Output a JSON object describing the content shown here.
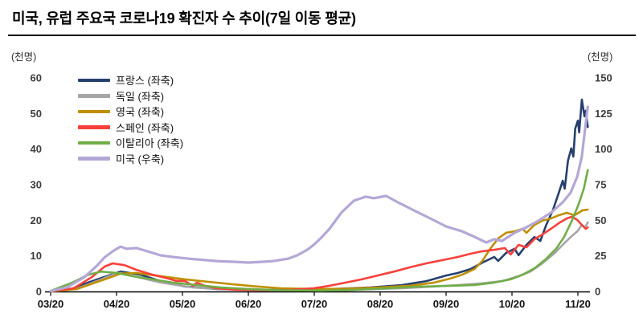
{
  "header": {
    "title": "미국, 유럽 주요국 코로나19 확진자 수 추이(7일 이동 평균)"
  },
  "chart_data": {
    "type": "line",
    "title": "미국, 유럽 주요국 코로나19 확진자 수 추이(7일 이동 평균)",
    "xlabel": "",
    "grid": false,
    "legend_position": "top-left",
    "left_axis": {
      "unit": "(천명)",
      "min": 0,
      "max": 60,
      "ticks": [
        0,
        10,
        20,
        30,
        40,
        50,
        60
      ]
    },
    "right_axis": {
      "unit": "(천명)",
      "min": 0,
      "max": 150,
      "ticks": [
        0,
        25,
        50,
        75,
        100,
        125,
        150
      ]
    },
    "x_axis": {
      "tick_labels": [
        "03/20",
        "04/20",
        "05/20",
        "06/20",
        "07/20",
        "08/20",
        "09/20",
        "10/20",
        "11/20"
      ],
      "note": "x unit = months since 03/20"
    },
    "series": [
      {
        "id": "france",
        "name": "프랑스 (좌축)",
        "axis": "left",
        "color": "#26406e",
        "points": [
          [
            0,
            0.1
          ],
          [
            0.3,
            0.6
          ],
          [
            0.57,
            2.5
          ],
          [
            0.82,
            4.1
          ],
          [
            1.06,
            5.6
          ],
          [
            1.37,
            4.7
          ],
          [
            1.67,
            2.9
          ],
          [
            2.04,
            1.4
          ],
          [
            2.52,
            0.7
          ],
          [
            3.0,
            0.5
          ],
          [
            3.5,
            0.45
          ],
          [
            4.0,
            0.5
          ],
          [
            4.4,
            0.8
          ],
          [
            4.84,
            1.1
          ],
          [
            5.33,
            1.8
          ],
          [
            5.7,
            2.9
          ],
          [
            6.0,
            4.5
          ],
          [
            6.18,
            5.2
          ],
          [
            6.37,
            6.3
          ],
          [
            6.55,
            8.1
          ],
          [
            6.73,
            9.7
          ],
          [
            6.79,
            8.6
          ],
          [
            6.91,
            10.8
          ],
          [
            7.04,
            12.0
          ],
          [
            7.1,
            10.2
          ],
          [
            7.22,
            13.1
          ],
          [
            7.34,
            15.3
          ],
          [
            7.43,
            14.2
          ],
          [
            7.52,
            18.7
          ],
          [
            7.62,
            22.8
          ],
          [
            7.71,
            27.7
          ],
          [
            7.77,
            31.1
          ],
          [
            7.8,
            28.9
          ],
          [
            7.85,
            36.8
          ],
          [
            7.9,
            40.2
          ],
          [
            7.93,
            37.9
          ],
          [
            7.96,
            45.8
          ],
          [
            8.0,
            48.0
          ],
          [
            8.02,
            44.7
          ],
          [
            8.06,
            53.9
          ],
          [
            8.1,
            49.2
          ],
          [
            8.12,
            50.8
          ],
          [
            8.15,
            46.2
          ]
        ]
      },
      {
        "id": "germany",
        "name": "독일 (좌축)",
        "axis": "left",
        "color": "#a6a6a6",
        "points": [
          [
            0,
            0.05
          ],
          [
            0.4,
            0.8
          ],
          [
            0.7,
            2.9
          ],
          [
            0.94,
            4.7
          ],
          [
            1.06,
            5.2
          ],
          [
            1.3,
            4.1
          ],
          [
            1.67,
            2.5
          ],
          [
            2.16,
            1.1
          ],
          [
            2.6,
            0.7
          ],
          [
            2.89,
            0.56
          ],
          [
            3.3,
            0.45
          ],
          [
            3.8,
            0.4
          ],
          [
            4.3,
            0.45
          ],
          [
            4.8,
            0.6
          ],
          [
            5.33,
            0.9
          ],
          [
            5.82,
            1.4
          ],
          [
            6.18,
            1.8
          ],
          [
            6.55,
            2.3
          ],
          [
            6.85,
            2.9
          ],
          [
            7.1,
            4.3
          ],
          [
            7.28,
            5.6
          ],
          [
            7.46,
            7.9
          ],
          [
            7.65,
            10.8
          ],
          [
            7.77,
            13.1
          ],
          [
            7.89,
            15.3
          ],
          [
            7.99,
            16.9
          ],
          [
            8.06,
            18.7
          ],
          [
            8.11,
            18.0
          ],
          [
            8.15,
            19.4
          ]
        ]
      },
      {
        "id": "uk",
        "name": "영국 (좌축)",
        "axis": "left",
        "color": "#bf8f00",
        "points": [
          [
            0,
            0.05
          ],
          [
            0.4,
            0.7
          ],
          [
            0.82,
            3.4
          ],
          [
            1.06,
            5.0
          ],
          [
            1.3,
            5.2
          ],
          [
            1.67,
            4.3
          ],
          [
            2.04,
            3.4
          ],
          [
            2.4,
            2.7
          ],
          [
            2.77,
            2.0
          ],
          [
            3.13,
            1.4
          ],
          [
            3.5,
            0.9
          ],
          [
            3.99,
            0.7
          ],
          [
            4.48,
            0.8
          ],
          [
            4.96,
            1.1
          ],
          [
            5.45,
            1.6
          ],
          [
            5.82,
            2.5
          ],
          [
            6.06,
            3.6
          ],
          [
            6.24,
            4.7
          ],
          [
            6.43,
            6.3
          ],
          [
            6.55,
            8.6
          ],
          [
            6.67,
            12.0
          ],
          [
            6.79,
            14.9
          ],
          [
            6.91,
            16.5
          ],
          [
            7.04,
            16.9
          ],
          [
            7.16,
            17.6
          ],
          [
            7.22,
            16.5
          ],
          [
            7.34,
            18.7
          ],
          [
            7.46,
            19.9
          ],
          [
            7.59,
            20.5
          ],
          [
            7.71,
            21.4
          ],
          [
            7.83,
            22.1
          ],
          [
            7.95,
            21.4
          ],
          [
            8.07,
            22.8
          ],
          [
            8.15,
            23.0
          ]
        ]
      },
      {
        "id": "spain",
        "name": "스페인 (좌축)",
        "axis": "left",
        "color": "#f8403a",
        "points": [
          [
            0,
            0.1
          ],
          [
            0.35,
            0.9
          ],
          [
            0.63,
            4.1
          ],
          [
            0.82,
            7.0
          ],
          [
            0.94,
            7.9
          ],
          [
            1.12,
            7.4
          ],
          [
            1.3,
            6.1
          ],
          [
            1.55,
            4.7
          ],
          [
            1.79,
            3.6
          ],
          [
            1.9,
            3.0
          ],
          [
            2.04,
            2.9
          ],
          [
            2.16,
            1.6
          ],
          [
            2.22,
            2.5
          ],
          [
            2.34,
            1.6
          ],
          [
            2.52,
            0.9
          ],
          [
            2.8,
            0.5
          ],
          [
            3.2,
            0.4
          ],
          [
            3.62,
            0.45
          ],
          [
            3.99,
            0.9
          ],
          [
            4.23,
            1.6
          ],
          [
            4.48,
            2.5
          ],
          [
            4.72,
            3.4
          ],
          [
            4.96,
            4.5
          ],
          [
            5.21,
            5.6
          ],
          [
            5.45,
            6.8
          ],
          [
            5.7,
            7.9
          ],
          [
            5.94,
            8.8
          ],
          [
            6.18,
            9.7
          ],
          [
            6.37,
            10.6
          ],
          [
            6.55,
            11.3
          ],
          [
            6.73,
            11.7
          ],
          [
            6.89,
            12.2
          ],
          [
            6.98,
            10.4
          ],
          [
            7.1,
            13.1
          ],
          [
            7.22,
            12.4
          ],
          [
            7.34,
            14.7
          ],
          [
            7.46,
            16.0
          ],
          [
            7.59,
            17.6
          ],
          [
            7.71,
            19.2
          ],
          [
            7.83,
            20.5
          ],
          [
            7.91,
            21.0
          ],
          [
            7.99,
            20.1
          ],
          [
            8.06,
            18.7
          ],
          [
            8.12,
            17.6
          ],
          [
            8.15,
            18.0
          ]
        ]
      },
      {
        "id": "italy",
        "name": "이탈리아 (좌축)",
        "axis": "left",
        "color": "#70ad47",
        "points": [
          [
            0,
            0.15
          ],
          [
            0.33,
            2.5
          ],
          [
            0.57,
            4.7
          ],
          [
            0.76,
            5.6
          ],
          [
            1.0,
            5.2
          ],
          [
            1.24,
            4.3
          ],
          [
            1.55,
            3.4
          ],
          [
            1.85,
            2.5
          ],
          [
            2.22,
            1.8
          ],
          [
            2.59,
            1.1
          ],
          [
            3.01,
            0.7
          ],
          [
            3.5,
            0.35
          ],
          [
            4.11,
            0.25
          ],
          [
            4.6,
            0.45
          ],
          [
            5.09,
            0.9
          ],
          [
            5.57,
            1.35
          ],
          [
            6.06,
            1.6
          ],
          [
            6.43,
            1.8
          ],
          [
            6.73,
            2.5
          ],
          [
            6.98,
            3.4
          ],
          [
            7.16,
            4.7
          ],
          [
            7.34,
            6.5
          ],
          [
            7.52,
            9.2
          ],
          [
            7.67,
            12.0
          ],
          [
            7.79,
            15.3
          ],
          [
            7.91,
            19.9
          ],
          [
            8.01,
            24.4
          ],
          [
            8.09,
            28.9
          ],
          [
            8.15,
            34.1
          ]
        ]
      },
      {
        "id": "us",
        "name": "미국 (우축)",
        "axis": "right",
        "color": "#b4a7d6",
        "points": [
          [
            0,
            0.3
          ],
          [
            0.25,
            3
          ],
          [
            0.51,
            10
          ],
          [
            0.7,
            18
          ],
          [
            0.82,
            24
          ],
          [
            0.95,
            28.5
          ],
          [
            1.06,
            31.5
          ],
          [
            1.15,
            30
          ],
          [
            1.3,
            30.5
          ],
          [
            1.45,
            28.5
          ],
          [
            1.67,
            25.4
          ],
          [
            1.9,
            24
          ],
          [
            2.1,
            23
          ],
          [
            2.52,
            21.4
          ],
          [
            2.8,
            20.8
          ],
          [
            3.0,
            20.3
          ],
          [
            3.2,
            20.8
          ],
          [
            3.38,
            21.4
          ],
          [
            3.6,
            23
          ],
          [
            3.74,
            25.4
          ],
          [
            3.9,
            29.5
          ],
          [
            3.99,
            32.7
          ],
          [
            4.1,
            37.5
          ],
          [
            4.23,
            44
          ],
          [
            4.41,
            55.3
          ],
          [
            4.6,
            63.7
          ],
          [
            4.78,
            66.6
          ],
          [
            4.9,
            65.5
          ],
          [
            4.96,
            66
          ],
          [
            5.09,
            67.1
          ],
          [
            5.27,
            62.6
          ],
          [
            5.51,
            57
          ],
          [
            5.76,
            51.3
          ],
          [
            6.0,
            45.7
          ],
          [
            6.24,
            42.3
          ],
          [
            6.43,
            38.4
          ],
          [
            6.61,
            34.4
          ],
          [
            6.73,
            36.7
          ],
          [
            6.85,
            35.5
          ],
          [
            7.04,
            41.2
          ],
          [
            7.22,
            45.1
          ],
          [
            7.4,
            49.6
          ],
          [
            7.59,
            55.3
          ],
          [
            7.77,
            62.6
          ],
          [
            7.89,
            69.4
          ],
          [
            7.99,
            80.7
          ],
          [
            8.06,
            94.8
          ],
          [
            8.11,
            114.5
          ],
          [
            8.15,
            129.7
          ]
        ]
      }
    ]
  }
}
